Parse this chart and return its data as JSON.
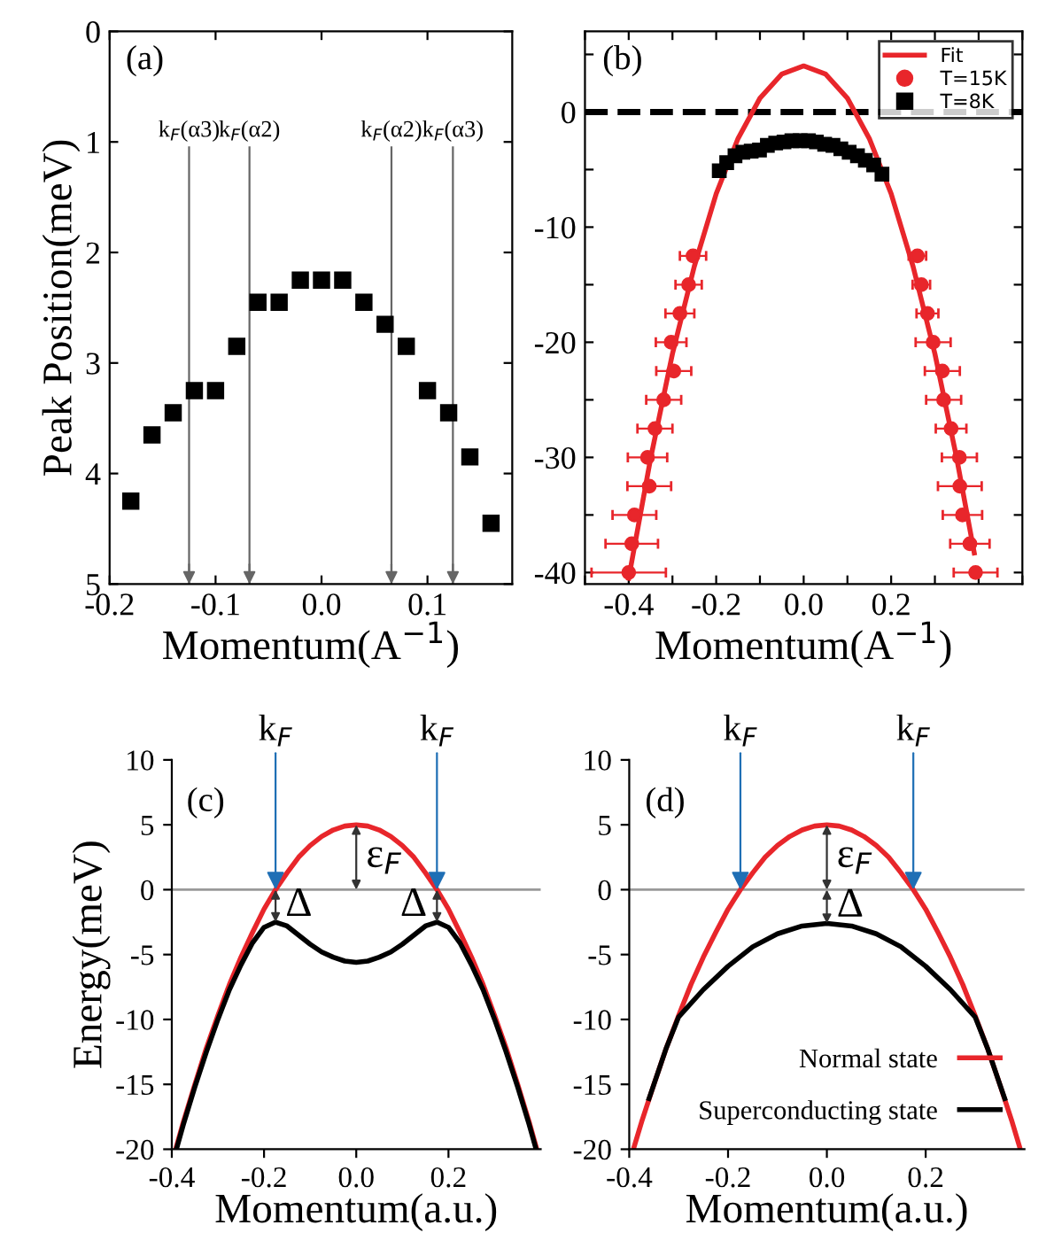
{
  "chart_data": [
    {
      "type": "scatter",
      "xlabel": "Momentum(A$^{−1}$)",
      "ylabel": "Peak Position(meV)",
      "xlim": [
        -0.2,
        0.18
      ],
      "ylim": [
        5,
        0
      ],
      "xticks": [
        -0.2,
        -0.1,
        {
          "value": 0,
          "label": "0.0"
        },
        0.1
      ],
      "yticks": [
        0,
        1,
        2,
        3,
        4,
        5
      ],
      "legend": false,
      "annotations": [
        "(a)"
      ],
      "ref_lines": [
        {
          "axis": "x",
          "value": -0.125,
          "label": "k$_{F}$(α3)",
          "color": "#666666"
        },
        {
          "axis": "x",
          "value": -0.068,
          "label": "k$_{F}$(α2)",
          "color": "#666666"
        },
        {
          "axis": "x",
          "value": 0.066,
          "label": "k$_{F}$(α2)",
          "color": "#666666"
        },
        {
          "axis": "x",
          "value": 0.124,
          "label": "k$_{F}$(α3)",
          "color": "#666666"
        }
      ],
      "series": [
        {
          "color": "#000000",
          "marker": "square",
          "x": [
            -0.18,
            -0.16,
            -0.14,
            -0.12,
            -0.1,
            -0.08,
            -0.06,
            -0.04,
            -0.02,
            0,
            0.02,
            0.04,
            0.06,
            0.08,
            0.1,
            0.12,
            0.14,
            0.16
          ],
          "values": [
            4.25,
            3.65,
            3.45,
            3.25,
            3.25,
            2.85,
            2.45,
            2.45,
            2.25,
            2.25,
            2.25,
            2.45,
            2.65,
            2.85,
            3.25,
            3.45,
            3.85,
            4.45
          ]
        }
      ]
    },
    {
      "type": "scatter",
      "xlabel": "Momentum(A$^{−1}$)",
      "xlim": [
        -0.5,
        0.5
      ],
      "ylim": [
        -41,
        7
      ],
      "xticks": [
        {
          "value": -0.5,
          "label": null
        },
        -0.4,
        {
          "value": -0.3,
          "label": null
        },
        -0.2,
        {
          "value": -0.1,
          "label": null
        },
        {
          "value": 0,
          "label": "0.0"
        },
        {
          "value": 0.1,
          "label": null
        },
        0.2,
        {
          "value": 0.3,
          "label": null
        },
        {
          "value": 0.4,
          "label": null
        },
        {
          "value": 0.5,
          "label": null
        }
      ],
      "yticks": [
        -40,
        {
          "value": -35,
          "label": null
        },
        -30,
        {
          "value": -25,
          "label": null
        },
        -20,
        {
          "value": -15,
          "label": null
        },
        -10,
        {
          "value": -5,
          "label": null
        },
        0,
        {
          "value": 5,
          "label": null
        }
      ],
      "legend": "top right",
      "annotations": [
        "(b)"
      ],
      "ref_lines": [
        {
          "axis": "y",
          "value": 0,
          "color": "#000000",
          "line_style": "dashed"
        }
      ],
      "series": [
        {
          "type": "line",
          "name": "Fit",
          "color": "#e8262b",
          "line_style": "solid",
          "marker": "none",
          "x": [
            -0.4,
            -0.35,
            -0.3,
            -0.25,
            -0.2,
            -0.15,
            -0.1,
            -0.05,
            0,
            0.05,
            0.1,
            0.15,
            0.2,
            0.25,
            0.3,
            0.35,
            0.39
          ],
          "values": [
            -40.5,
            -30.1,
            -21.0,
            -13.4,
            -7.1,
            -2.3,
            1.2,
            3.3,
            4.0,
            3.3,
            1.2,
            -2.3,
            -7.1,
            -13.4,
            -21.0,
            -30.1,
            -38.3
          ]
        },
        {
          "name": "T=15K",
          "color": "#e8262b",
          "marker": "circle",
          "x": [
            -0.253,
            -0.263,
            -0.283,
            -0.303,
            -0.297,
            -0.32,
            -0.34,
            -0.357,
            -0.353,
            -0.387,
            -0.393,
            -0.4,
            0.26,
            0.269,
            0.283,
            0.296,
            0.317,
            0.32,
            0.337,
            0.356,
            0.357,
            0.363,
            0.38,
            0.393
          ],
          "values": [
            -12.5,
            -15,
            -17.5,
            -20,
            -22.5,
            -25,
            -27.5,
            -30,
            -32.5,
            -35,
            -37.5,
            -40,
            -12.5,
            -15,
            -17.5,
            -20,
            -22.5,
            -25,
            -27.5,
            -30,
            -32.5,
            -35,
            -37.5,
            -40
          ],
          "xerrors": [
            0.03,
            0.03,
            0.033,
            0.035,
            0.04,
            0.04,
            0.04,
            0.045,
            0.05,
            0.05,
            0.06,
            0.085,
            0.02,
            0.02,
            0.025,
            0.04,
            0.04,
            0.04,
            0.035,
            0.04,
            0.05,
            0.045,
            0.045,
            0.05
          ]
        },
        {
          "name": "T=8K",
          "color": "#000000",
          "marker": "square",
          "x": [
            -0.193,
            -0.176,
            -0.157,
            -0.139,
            -0.12,
            -0.101,
            -0.083,
            -0.064,
            -0.045,
            -0.027,
            -0.008,
            0.011,
            0.029,
            0.048,
            0.067,
            0.085,
            0.104,
            0.123,
            0.141,
            0.16,
            0.179
          ],
          "values": [
            -5.1,
            -4.4,
            -3.8,
            -3.5,
            -3.4,
            -3.3,
            -2.9,
            -2.7,
            -2.6,
            -2.5,
            -2.5,
            -2.5,
            -2.6,
            -2.8,
            -2.9,
            -3.2,
            -3.5,
            -3.8,
            -4.2,
            -4.6,
            -5.4
          ]
        }
      ]
    },
    {
      "type": "line",
      "xlabel": "Momentum(a.u.)",
      "ylabel": "Energy(meV)",
      "xlim": [
        -0.4,
        0.4
      ],
      "ylim": [
        -20,
        10
      ],
      "xticks": [
        -0.4,
        -0.2,
        {
          "value": 0,
          "label": "0.0"
        },
        0.2
      ],
      "yticks": [
        -20,
        -15,
        -10,
        -5,
        0,
        5,
        10
      ],
      "legend": false,
      "annotations": [
        "(c)",
        {
          "text": "k$_{F}$",
          "x": -0.175,
          "y": 0
        },
        {
          "text": "k$_{F}$",
          "x": 0.175,
          "y": 0
        },
        {
          "text": "ε$_{F}$",
          "x": 0,
          "y": 5
        },
        {
          "text": "Δ",
          "x": -0.175,
          "y": -2.5
        },
        {
          "text": "Δ",
          "x": 0.175,
          "y": -2.5
        }
      ],
      "ref_lines": [
        {
          "axis": "y",
          "value": 0,
          "color": "#999999",
          "line_style": "solid"
        }
      ],
      "series": [
        {
          "color": "#e8262b",
          "line_style": "solid",
          "x": [
            -0.39,
            -0.375,
            -0.35,
            -0.325,
            -0.3,
            -0.275,
            -0.25,
            -0.225,
            -0.2,
            -0.175,
            -0.15,
            -0.125,
            -0.1,
            -0.075,
            -0.05,
            -0.025,
            0,
            0.025,
            0.05,
            0.075,
            0.1,
            0.125,
            0.15,
            0.175,
            0.2,
            0.225,
            0.25,
            0.275,
            0.3,
            0.325,
            0.35,
            0.375,
            0.39
          ],
          "values": [
            -19.8,
            -17.9,
            -15.0,
            -12.2,
            -9.7,
            -7.3,
            -5.2,
            -3.3,
            -1.5,
            0.0,
            1.3,
            2.5,
            3.4,
            4.1,
            4.6,
            4.9,
            5.0,
            4.9,
            4.6,
            4.1,
            3.4,
            2.5,
            1.3,
            0.0,
            -1.5,
            -3.3,
            -5.2,
            -7.3,
            -9.7,
            -12.2,
            -15.0,
            -17.9,
            -19.8
          ]
        },
        {
          "color": "#000000",
          "line_style": "solid",
          "x": [
            -0.39,
            -0.375,
            -0.35,
            -0.325,
            -0.3,
            -0.275,
            -0.25,
            -0.225,
            -0.2,
            -0.175,
            -0.15,
            -0.125,
            -0.1,
            -0.075,
            -0.05,
            -0.025,
            0,
            0.025,
            0.05,
            0.075,
            0.1,
            0.125,
            0.15,
            0.175,
            0.2,
            0.225,
            0.25,
            0.275,
            0.3,
            0.325,
            0.35,
            0.375,
            0.39
          ],
          "values": [
            -20.0,
            -18.1,
            -15.2,
            -12.5,
            -10.0,
            -7.7,
            -5.8,
            -4.1,
            -2.9,
            -2.5,
            -2.8,
            -3.5,
            -4.2,
            -4.8,
            -5.2,
            -5.5,
            -5.6,
            -5.5,
            -5.2,
            -4.8,
            -4.2,
            -3.5,
            -2.8,
            -2.5,
            -2.9,
            -4.1,
            -5.8,
            -7.7,
            -10.0,
            -12.5,
            -15.2,
            -18.1,
            -20.0
          ]
        }
      ]
    },
    {
      "type": "line",
      "xlabel": "Momentum(a.u.)",
      "xlim": [
        -0.4,
        0.4
      ],
      "ylim": [
        -20,
        10
      ],
      "xticks": [
        -0.4,
        -0.2,
        {
          "value": 0,
          "label": "0.0"
        },
        0.2
      ],
      "yticks": [
        -20,
        -15,
        -10,
        -5,
        0,
        5,
        10
      ],
      "legend": "bottom right",
      "annotations": [
        "(d)",
        {
          "text": "k$_{F}$",
          "x": -0.175,
          "y": 0
        },
        {
          "text": "k$_{F}$",
          "x": 0.175,
          "y": 0
        },
        {
          "text": "ε$_{F}$",
          "x": 0,
          "y": 5
        },
        {
          "text": "Δ",
          "x": 0,
          "y": -2.6
        }
      ],
      "ref_lines": [
        {
          "axis": "y",
          "value": 0,
          "color": "#999999",
          "line_style": "solid"
        }
      ],
      "series": [
        {
          "name": "Normal state",
          "color": "#e8262b",
          "line_style": "solid",
          "x": [
            -0.39,
            -0.375,
            -0.35,
            -0.325,
            -0.3,
            -0.275,
            -0.25,
            -0.225,
            -0.2,
            -0.175,
            -0.15,
            -0.125,
            -0.1,
            -0.075,
            -0.05,
            -0.025,
            0,
            0.025,
            0.05,
            0.075,
            0.1,
            0.125,
            0.15,
            0.175,
            0.2,
            0.225,
            0.25,
            0.275,
            0.3,
            0.325,
            0.35,
            0.375,
            0.39
          ],
          "values": [
            -19.8,
            -17.9,
            -15.0,
            -12.2,
            -9.7,
            -7.3,
            -5.2,
            -3.3,
            -1.5,
            0.0,
            1.3,
            2.5,
            3.4,
            4.1,
            4.6,
            4.9,
            5.0,
            4.9,
            4.6,
            4.1,
            3.4,
            2.5,
            1.3,
            0.0,
            -1.5,
            -3.3,
            -5.2,
            -7.3,
            -9.7,
            -12.2,
            -15.0,
            -17.9,
            -19.8
          ]
        },
        {
          "name": "Superconducting state",
          "color": "#000000",
          "line_style": "solid",
          "x": [
            -0.36,
            -0.35,
            -0.325,
            -0.3,
            -0.25,
            -0.2,
            -0.15,
            -0.1,
            -0.05,
            0,
            0.05,
            0.1,
            0.15,
            0.2,
            0.25,
            0.3,
            0.325,
            0.35,
            0.36
          ],
          "values": [
            -16.1,
            -15.0,
            -12.2,
            -9.8,
            -7.7,
            -5.9,
            -4.4,
            -3.4,
            -2.8,
            -2.6,
            -2.8,
            -3.4,
            -4.4,
            -5.9,
            -7.7,
            -9.8,
            -12.2,
            -15.0,
            -16.1
          ]
        }
      ]
    }
  ]
}
